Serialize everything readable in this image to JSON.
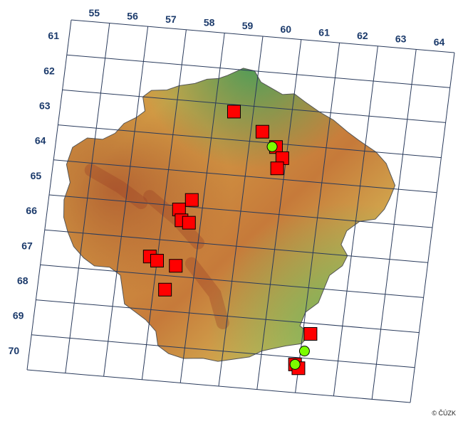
{
  "map": {
    "column_labels": [
      "55",
      "56",
      "57",
      "58",
      "59",
      "60",
      "61",
      "62",
      "63",
      "64"
    ],
    "row_labels": [
      "61",
      "62",
      "63",
      "64",
      "65",
      "66",
      "67",
      "68",
      "69",
      "70"
    ],
    "colors": {
      "grid": "#2a3b5c",
      "label": "#1b3a6b",
      "record_square": "#ff0000",
      "record_circle": "#7cfc00",
      "outline": "#555555",
      "lowland": "#4fa35a",
      "hills": "#d9b24c",
      "highland": "#b05a2f"
    },
    "records_square": [
      {
        "col": 59,
        "row": 62.7
      },
      {
        "col": 59.8,
        "row": 63.2
      },
      {
        "col": 60.2,
        "row": 63.6
      },
      {
        "col": 60.4,
        "row": 63.9
      },
      {
        "col": 60.3,
        "row": 64.2
      },
      {
        "col": 58.2,
        "row": 65.3
      },
      {
        "col": 57.9,
        "row": 65.6
      },
      {
        "col": 58.0,
        "row": 65.9
      },
      {
        "col": 58.2,
        "row": 65.95
      },
      {
        "col": 57.3,
        "row": 67.0
      },
      {
        "col": 57.5,
        "row": 67.1
      },
      {
        "col": 58.0,
        "row": 67.2
      },
      {
        "col": 57.8,
        "row": 67.9
      },
      {
        "col": 61.7,
        "row": 68.8
      },
      {
        "col": 61.4,
        "row": 69.7
      },
      {
        "col": 61.5,
        "row": 69.8
      }
    ],
    "records_circle": [
      {
        "col": 60.1,
        "row": 63.6
      },
      {
        "col": 61.6,
        "row": 69.3
      },
      {
        "col": 61.4,
        "row": 69.7
      }
    ]
  },
  "credit": "© ČÚZK"
}
